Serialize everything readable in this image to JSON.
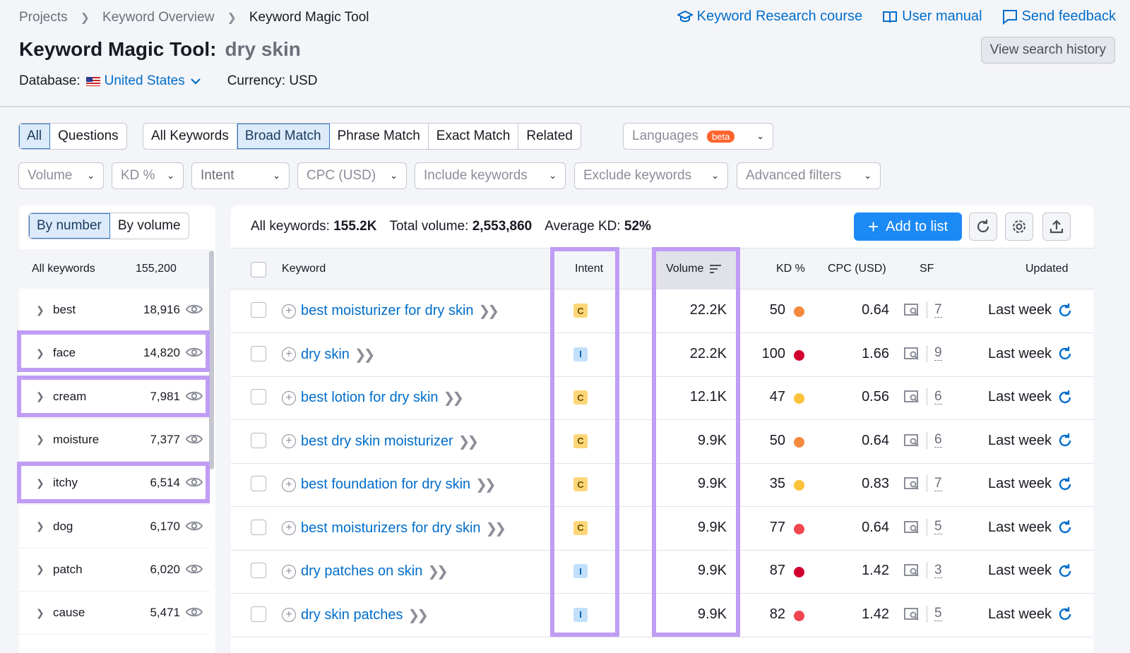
{
  "breadcrumb": [
    "Projects",
    "Keyword Overview",
    "Keyword Magic Tool"
  ],
  "toplinks": {
    "course": "Keyword Research course",
    "manual": "User manual",
    "feedback": "Send feedback"
  },
  "title": {
    "prefix": "Keyword Magic Tool:",
    "keyword": "dry skin"
  },
  "history_button": "View search history",
  "database": {
    "label": "Database:",
    "value": "United States",
    "currency": "Currency: USD"
  },
  "tabs_type": [
    "All",
    "Questions"
  ],
  "tabs_match": [
    "All Keywords",
    "Broad Match",
    "Phrase Match",
    "Exact Match",
    "Related"
  ],
  "languages": {
    "label": "Languages",
    "badge": "beta"
  },
  "filters": [
    "Volume",
    "KD %",
    "Intent",
    "CPC (USD)",
    "Include keywords",
    "Exclude keywords",
    "Advanced filters"
  ],
  "left": {
    "toggle": [
      "By number",
      "By volume"
    ],
    "all_label": "All keywords",
    "all_count": "155,200",
    "groups": [
      {
        "label": "best",
        "count": "18,916"
      },
      {
        "label": "face",
        "count": "14,820"
      },
      {
        "label": "cream",
        "count": "7,981"
      },
      {
        "label": "moisture",
        "count": "7,377"
      },
      {
        "label": "itchy",
        "count": "6,514"
      },
      {
        "label": "dog",
        "count": "6,170"
      },
      {
        "label": "patch",
        "count": "6,020"
      },
      {
        "label": "cause",
        "count": "5,471"
      }
    ]
  },
  "stats": {
    "all_label": "All keywords:",
    "all_value": "155.2K",
    "vol_label": "Total volume:",
    "vol_value": "2,553,860",
    "kd_label": "Average KD:",
    "kd_value": "52%"
  },
  "add_button": "Add to list",
  "columns": [
    "Keyword",
    "Intent",
    "Volume",
    "KD %",
    "CPC (USD)",
    "SF",
    "Updated"
  ],
  "rows": [
    {
      "keyword": "best moisturizer for dry skin",
      "intent": "C",
      "volume": "22.2K",
      "kd": "50",
      "kd_color": "#f5893e",
      "cpc": "0.64",
      "sf": "7",
      "updated": "Last week"
    },
    {
      "keyword": "dry skin",
      "intent": "I",
      "volume": "22.2K",
      "kd": "100",
      "kd_color": "#d1002f",
      "cpc": "1.66",
      "sf": "9",
      "updated": "Last week"
    },
    {
      "keyword": "best lotion for dry skin",
      "intent": "C",
      "volume": "12.1K",
      "kd": "47",
      "kd_color": "#fbc23a",
      "cpc": "0.56",
      "sf": "6",
      "updated": "Last week"
    },
    {
      "keyword": "best dry skin moisturizer",
      "intent": "C",
      "volume": "9.9K",
      "kd": "50",
      "kd_color": "#f5893e",
      "cpc": "0.64",
      "sf": "6",
      "updated": "Last week"
    },
    {
      "keyword": "best foundation for dry skin",
      "intent": "C",
      "volume": "9.9K",
      "kd": "35",
      "kd_color": "#fbc23a",
      "cpc": "0.83",
      "sf": "7",
      "updated": "Last week"
    },
    {
      "keyword": "best moisturizers for dry skin",
      "intent": "C",
      "volume": "9.9K",
      "kd": "77",
      "kd_color": "#f04650",
      "cpc": "0.64",
      "sf": "5",
      "updated": "Last week"
    },
    {
      "keyword": "dry patches on skin",
      "intent": "I",
      "volume": "9.9K",
      "kd": "87",
      "kd_color": "#d1002f",
      "cpc": "1.42",
      "sf": "3",
      "updated": "Last week"
    },
    {
      "keyword": "dry skin patches",
      "intent": "I",
      "volume": "9.9K",
      "kd": "82",
      "kd_color": "#f04650",
      "cpc": "1.42",
      "sf": "5",
      "updated": "Last week"
    }
  ],
  "colors": {
    "accent": "#006dca",
    "highlight": "#bf9df5",
    "primary_button": "#1c8af5"
  }
}
